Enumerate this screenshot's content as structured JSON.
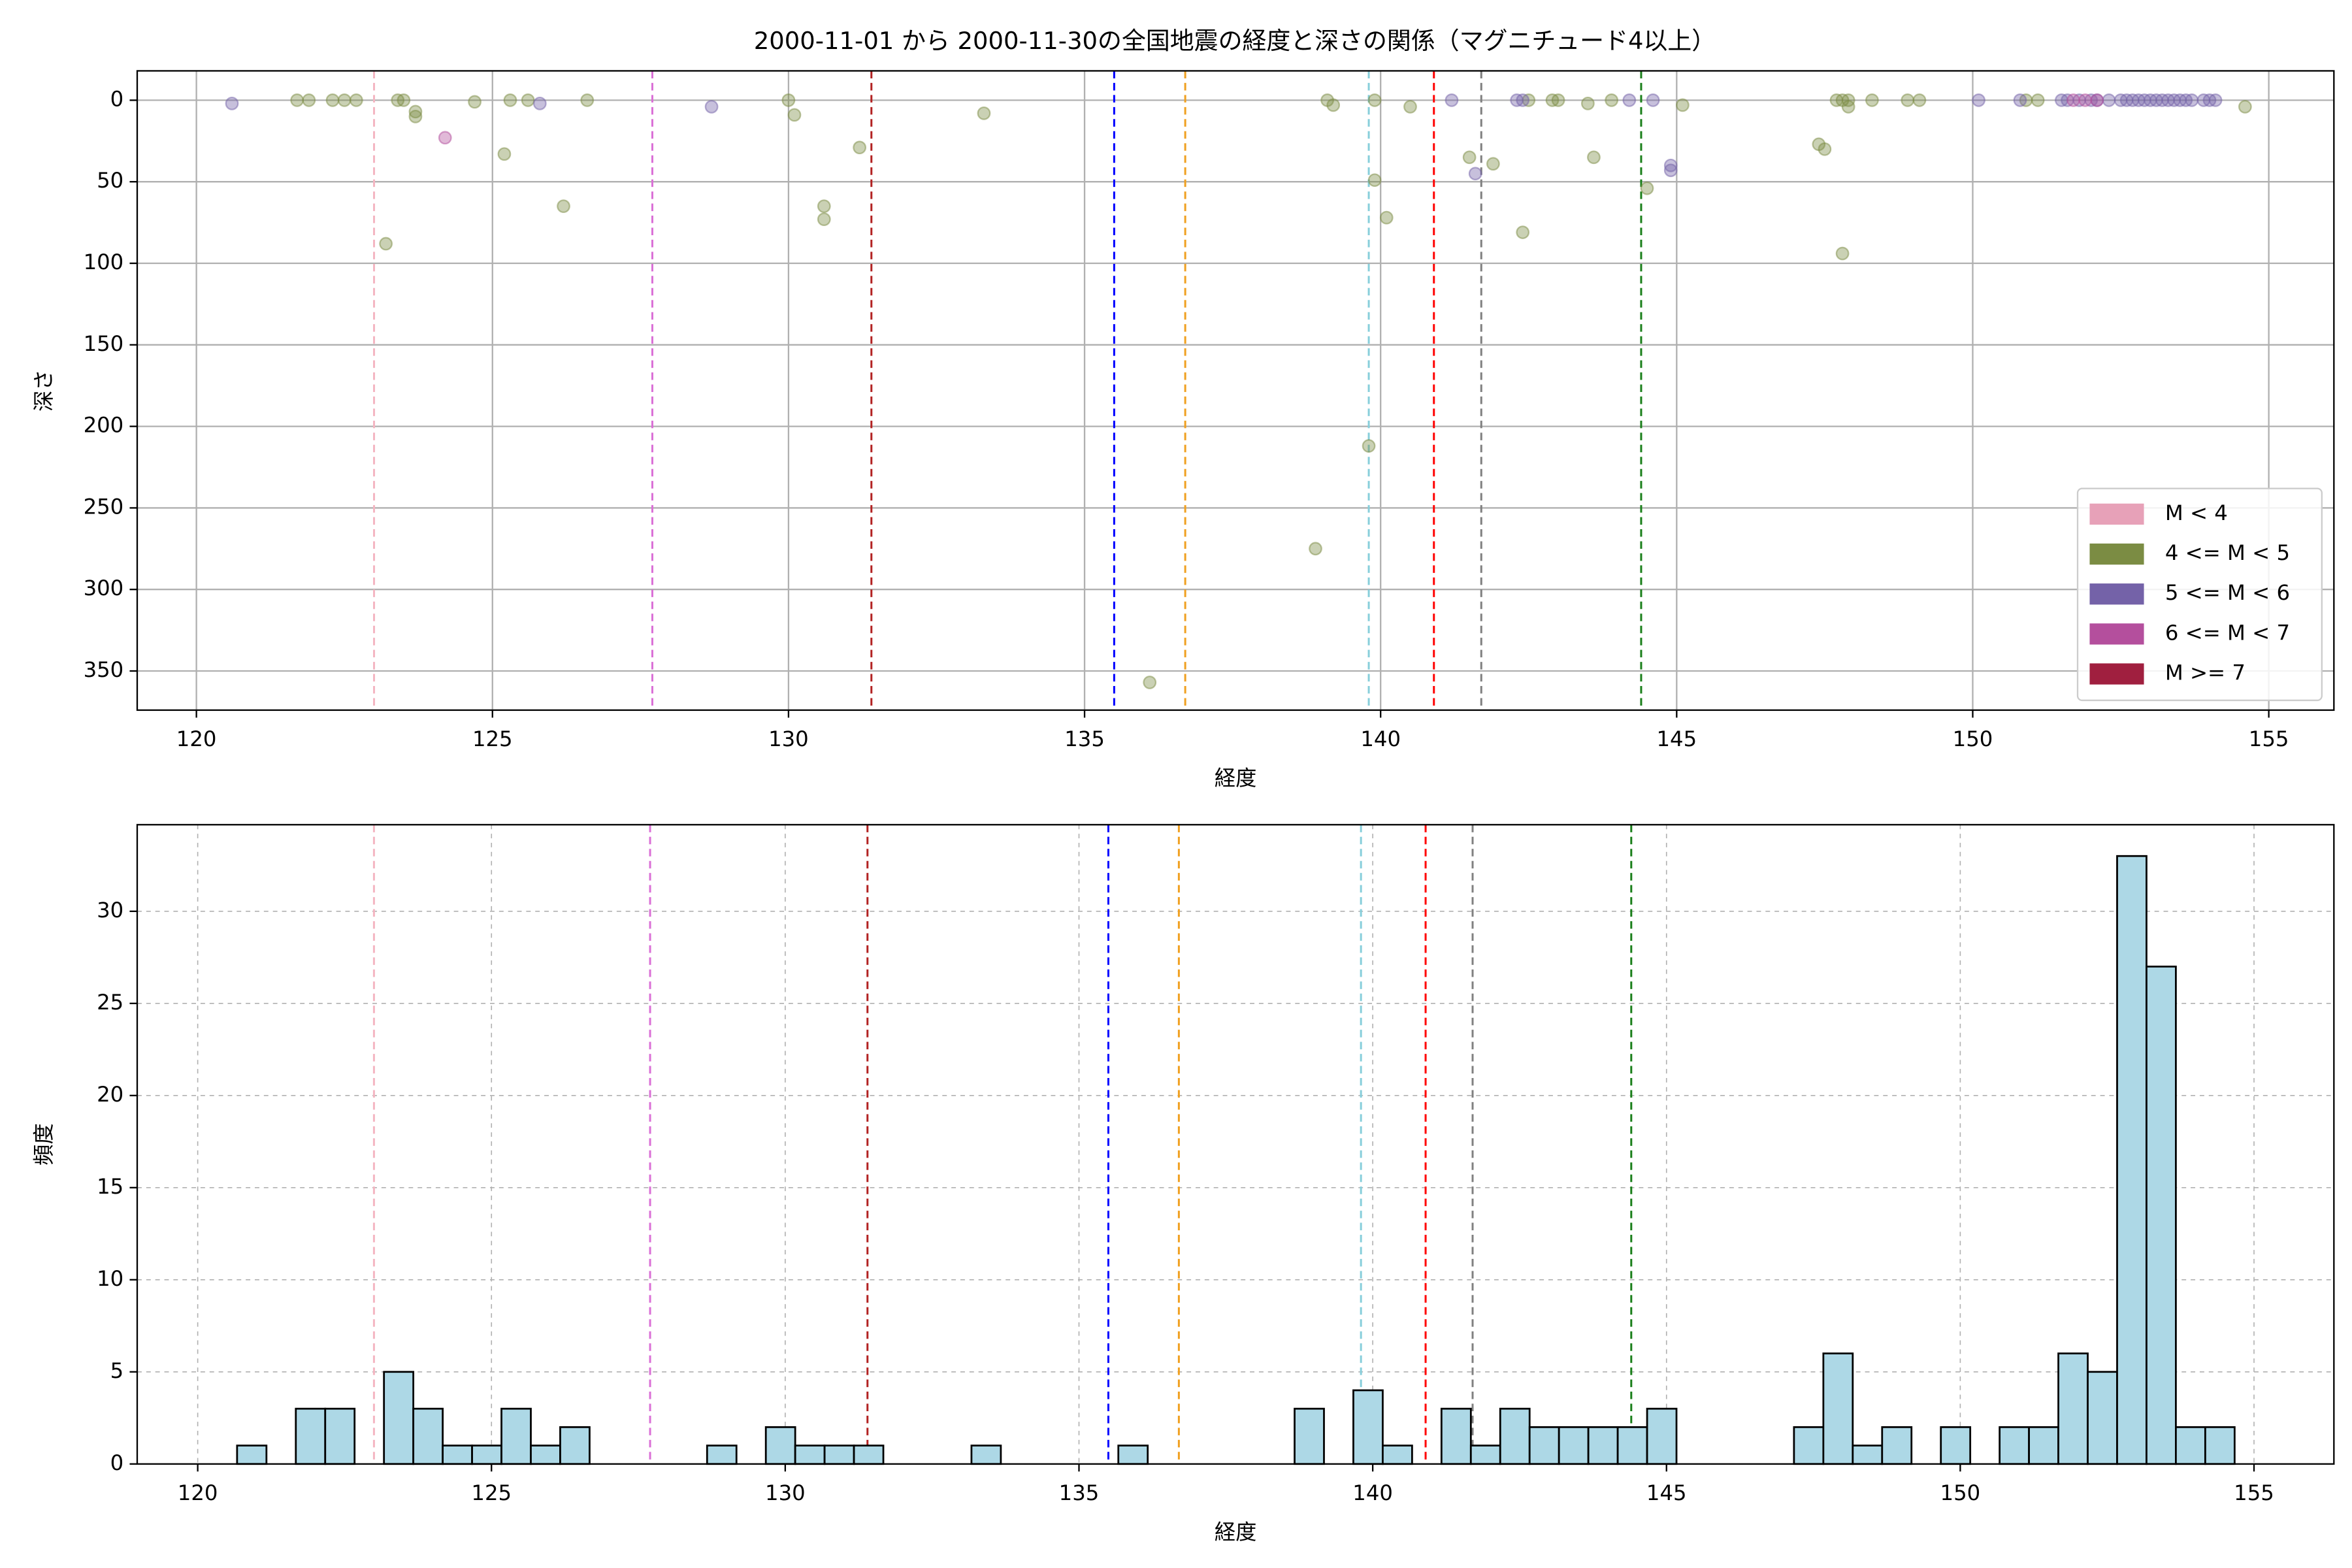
{
  "chart_data": [
    {
      "type": "scatter",
      "title": "2000-11-01 から 2000-11-30の全国地震の経度と深さの関係（マグニチュード4以上）",
      "x_label": "経度",
      "y_label": "深さ",
      "xlim": [
        119,
        156.1
      ],
      "ylim": [
        374,
        -18
      ],
      "xticks": [
        120,
        125,
        130,
        135,
        140,
        145,
        150,
        155
      ],
      "yticks": [
        0,
        50,
        100,
        150,
        200,
        250,
        300,
        350
      ],
      "grid": true,
      "legend": "lower right",
      "vlines": [
        {
          "x": 123.0,
          "color": "#f4b6c2"
        },
        {
          "x": 127.7,
          "color": "#da70d6"
        },
        {
          "x": 131.4,
          "color": "#b22222"
        },
        {
          "x": 135.5,
          "color": "#0000ff"
        },
        {
          "x": 136.7,
          "color": "#f0a020"
        },
        {
          "x": 139.8,
          "color": "#87cedb"
        },
        {
          "x": 140.9,
          "color": "#ff0000"
        },
        {
          "x": 141.7,
          "color": "#808080"
        },
        {
          "x": 144.4,
          "color": "#1a7f1a"
        }
      ],
      "series": [
        {
          "name": "M < 4",
          "color": "#e7a1b8",
          "x": [],
          "y": []
        },
        {
          "name": "4 <= M < 5",
          "color": "#7b8c43",
          "x": [
            121.7,
            121.9,
            122.3,
            122.5,
            122.7,
            123.2,
            123.4,
            123.5,
            123.7,
            123.7,
            124.7,
            125.2,
            125.3,
            125.6,
            126.2,
            126.6,
            130.0,
            130.1,
            130.6,
            130.6,
            131.2,
            133.3,
            136.1,
            138.9,
            139.1,
            139.2,
            139.8,
            139.9,
            139.9,
            140.1,
            140.5,
            141.5,
            141.9,
            142.4,
            142.5,
            142.9,
            143.0,
            143.5,
            143.6,
            143.9,
            144.5,
            145.1,
            147.4,
            147.5,
            147.7,
            147.8,
            147.9,
            147.9,
            147.8,
            148.3,
            148.9,
            149.1,
            150.9,
            151.1,
            154.6
          ],
          "y": [
            0,
            0,
            0,
            0,
            0,
            88,
            0,
            0,
            7,
            10,
            1,
            33,
            0,
            0,
            65,
            0,
            0,
            9,
            65,
            73,
            29,
            8,
            357,
            275,
            0,
            3,
            212,
            0,
            49,
            72,
            4,
            35,
            39,
            81,
            0,
            0,
            0,
            2,
            35,
            0,
            54,
            3,
            27,
            30,
            0,
            0,
            0,
            4,
            94,
            0,
            0,
            0,
            0,
            0,
            4
          ]
        },
        {
          "name": "5 <= M < 6",
          "color": "#7462a8",
          "x": [
            120.6,
            125.8,
            128.7,
            141.2,
            141.6,
            142.3,
            142.4,
            144.2,
            144.6,
            144.9,
            144.9,
            150.1,
            150.8,
            151.5,
            151.6,
            151.8,
            152.0,
            152.1,
            152.3,
            152.5,
            152.6,
            152.7,
            152.8,
            152.9,
            153.0,
            153.1,
            153.2,
            153.3,
            153.4,
            153.5,
            153.6,
            153.7,
            153.9,
            154.0,
            154.1
          ],
          "y": [
            2,
            2,
            4,
            0,
            45,
            0,
            0,
            0,
            0,
            43,
            40,
            0,
            0,
            0,
            0,
            0,
            0,
            0,
            0,
            0,
            0,
            0,
            0,
            0,
            0,
            0,
            0,
            0,
            0,
            0,
            0,
            0,
            0,
            0,
            0
          ]
        },
        {
          "name": "6 <= M < 7",
          "color": "#b44f9d",
          "x": [
            124.2,
            151.7,
            151.9,
            152.1
          ],
          "y": [
            23,
            0,
            0,
            0
          ]
        },
        {
          "name": "M >= 7",
          "color": "#a01f3f",
          "x": [],
          "y": []
        }
      ]
    },
    {
      "type": "histogram",
      "x_label": "経度",
      "y_label": "頻度",
      "color": "#add8e6",
      "xlim": [
        118.97,
        156.36
      ],
      "ylim": [
        0,
        34.7
      ],
      "xticks": [
        120,
        125,
        130,
        135,
        140,
        145,
        150,
        155
      ],
      "yticks": [
        0,
        5,
        10,
        15,
        20,
        25,
        30
      ],
      "grid": true,
      "vlines": [
        {
          "x": 123.0,
          "color": "#f4b6c2"
        },
        {
          "x": 127.7,
          "color": "#da70d6"
        },
        {
          "x": 131.4,
          "color": "#b22222"
        },
        {
          "x": 135.5,
          "color": "#0000ff"
        },
        {
          "x": 136.7,
          "color": "#f0a020"
        },
        {
          "x": 139.8,
          "color": "#87cedb"
        },
        {
          "x": 140.9,
          "color": "#ff0000"
        },
        {
          "x": 141.7,
          "color": "#808080"
        },
        {
          "x": 144.4,
          "color": "#1a7f1a"
        }
      ],
      "bins": [
        120.67,
        121.17,
        121.67,
        122.17,
        122.67,
        123.17,
        123.67,
        124.17,
        124.67,
        125.17,
        125.67,
        126.17,
        126.67,
        127.17,
        127.67,
        128.17,
        128.67,
        129.17,
        129.67,
        130.17,
        130.67,
        131.17,
        131.67,
        132.17,
        132.67,
        133.17,
        133.67,
        134.17,
        134.67,
        135.17,
        135.67,
        136.17,
        136.67,
        137.17,
        137.67,
        138.17,
        138.67,
        139.17,
        139.67,
        140.17,
        140.67,
        141.17,
        141.67,
        142.17,
        142.67,
        143.17,
        143.67,
        144.17,
        144.67,
        145.17,
        145.67,
        146.17,
        146.67,
        147.17,
        147.67,
        148.17,
        148.67,
        149.17,
        149.67,
        150.17,
        150.67,
        151.17,
        151.67,
        152.17,
        152.67,
        153.17,
        153.67,
        154.17,
        154.67
      ],
      "values": [
        1,
        0,
        3,
        3,
        0,
        5,
        3,
        1,
        1,
        3,
        1,
        2,
        0,
        0,
        0,
        0,
        1,
        0,
        2,
        1,
        1,
        1,
        0,
        0,
        0,
        1,
        0,
        0,
        0,
        0,
        1,
        0,
        0,
        0,
        0,
        0,
        3,
        0,
        4,
        1,
        0,
        3,
        1,
        3,
        2,
        2,
        2,
        2,
        3,
        0,
        0,
        0,
        0,
        2,
        6,
        1,
        2,
        0,
        2,
        0,
        2,
        2,
        6,
        5,
        33,
        27,
        2,
        2
      ]
    }
  ]
}
